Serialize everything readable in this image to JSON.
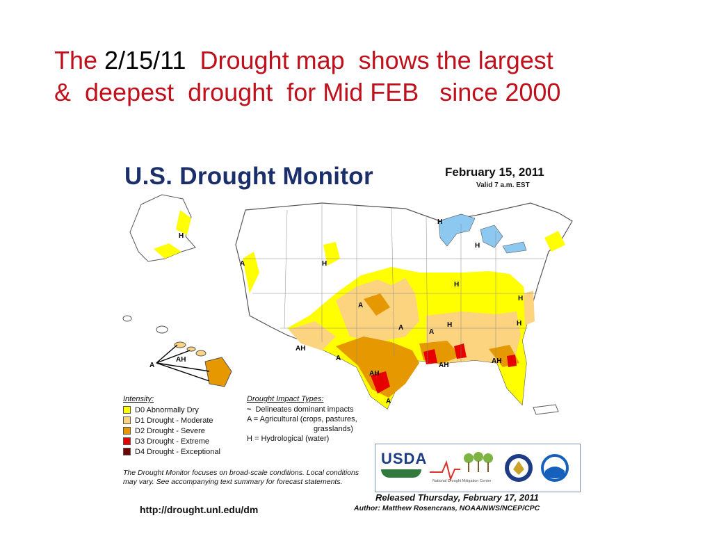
{
  "slide": {
    "title_part1": "The ",
    "title_date": "2/15/11",
    "title_part2": "  Drought map  shows the largest\n&  deepest  drought  for Mid FEB   since 2000"
  },
  "map": {
    "heading": "U.S. Drought Monitor",
    "date": "February 15, 2011",
    "valid": "Valid 7 a.m. EST",
    "labels": {
      "a": "A",
      "h": "H",
      "ah": "AH"
    },
    "colors": {
      "d0": "#ffff00",
      "d1": "#fcd37f",
      "d2": "#e69800",
      "d3": "#e60000",
      "d4": "#730000",
      "land": "#ffffff",
      "water": "#8cc8f0",
      "border": "#555555"
    },
    "intensity": {
      "heading": "Intensity:",
      "items": [
        {
          "label": "D0 Abnormally Dry",
          "color": "#ffff00"
        },
        {
          "label": "D1 Drought - Moderate",
          "color": "#fcd37f"
        },
        {
          "label": "D2 Drought - Severe",
          "color": "#e69800"
        },
        {
          "label": "D3 Drought - Extreme",
          "color": "#e60000"
        },
        {
          "label": "D4 Drought - Exceptional",
          "color": "#730000"
        }
      ]
    },
    "impact": {
      "heading": "Drought Impact Types:",
      "delineates": "Delineates dominant impacts",
      "agricultural_1": "A = Agricultural (crops, pastures,",
      "agricultural_2": "grasslands)",
      "hydrological": "H = Hydrological (water)"
    },
    "note": "The Drought Monitor focuses on broad-scale conditions. Local conditions may vary. See accompanying text summary for forecast statements.",
    "url": "http://drought.unl.edu/dm",
    "logos": {
      "usda": "USDA",
      "ndmc": "National Drought Mitigation Center"
    },
    "released": "Released Thursday, February 17, 2011",
    "author": "Author: Matthew Rosencrans, NOAA/NWS/NCEP/CPC"
  }
}
